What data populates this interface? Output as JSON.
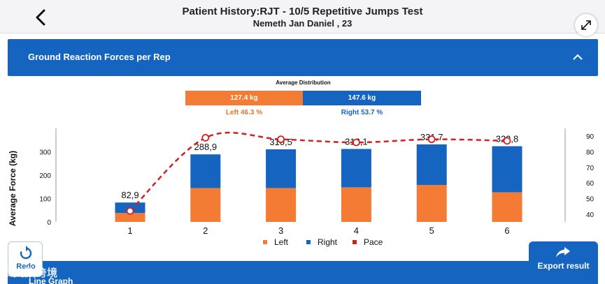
{
  "header": {
    "title": "Patient History:RJT - 10/5 Repetitive Jumps Test",
    "subtitle": "Nemeth Jan Daniel , 23"
  },
  "section": {
    "title": "Ground Reaction Forces per Rep"
  },
  "distribution": {
    "title": "Average Distribution",
    "left_value": "127.4 kg",
    "right_value": "147.6 kg",
    "left_percent": "Left 46.3 %",
    "right_percent": "Right 53.7 %",
    "left_share": 46.3,
    "right_share": 53.7
  },
  "colors": {
    "left": "#f47b33",
    "right": "#1565c0",
    "pace": "#d32020",
    "accent": "#1565c0"
  },
  "chart_data": {
    "type": "bar",
    "categories": [
      "1",
      "2",
      "3",
      "4",
      "5",
      "6"
    ],
    "series": [
      {
        "name": "Left",
        "type": "bar",
        "stack": "force",
        "values": [
          38,
          145,
          145,
          148,
          158,
          127
        ]
      },
      {
        "name": "Right",
        "type": "bar",
        "stack": "force",
        "values": [
          44.9,
          143.9,
          165.5,
          164.1,
          173.7,
          196.8
        ]
      },
      {
        "name": "Pace",
        "type": "line",
        "axis": "right",
        "values": [
          42,
          89,
          88,
          86,
          88,
          87
        ]
      }
    ],
    "data_labels": [
      "82,9",
      "288,9",
      "310,5",
      "312,1",
      "331,7",
      "323,8"
    ],
    "ylabel": "Average Force (kg)",
    "ylim": [
      0,
      400
    ],
    "yticks": [
      "0",
      "100",
      "200",
      "300"
    ],
    "y2lim": [
      35,
      95
    ],
    "y2ticks": [
      "40",
      "50",
      "60",
      "70",
      "80",
      "90"
    ],
    "legend": [
      "Left",
      "Right",
      "Pace"
    ]
  },
  "footer": {
    "line_graph_title": "Line Graph",
    "redo_label": "Redo",
    "export_label": "Export result",
    "watermark": "Σ 大数跨境"
  }
}
